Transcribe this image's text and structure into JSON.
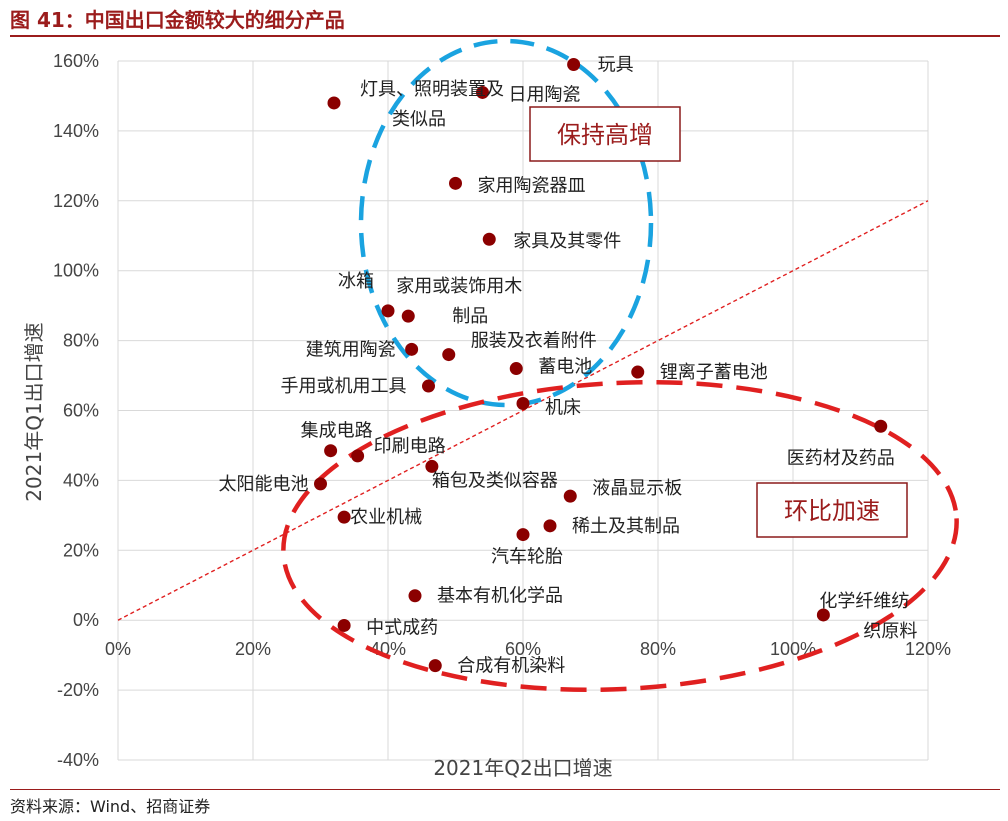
{
  "header": {
    "title": "图 41：中国出口金额较大的细分产品"
  },
  "footer": {
    "source": "资料来源：Wind、招商证券"
  },
  "colors": {
    "title": "#9b1c1c",
    "points": "#8b0000",
    "diagonal": "#e02020",
    "blue_group": "#1aa3e0",
    "red_group": "#e02020",
    "grid": "#d9d9d9"
  },
  "chart_data": {
    "type": "scatter",
    "title": "",
    "xlabel": "2021年Q2出口增速",
    "ylabel": "2021年Q1出口增速",
    "xlim": [
      0,
      120
    ],
    "ylim": [
      -40,
      160
    ],
    "x_ticks": [
      0,
      20,
      40,
      60,
      80,
      100,
      120
    ],
    "y_ticks": [
      -40,
      -20,
      0,
      20,
      40,
      60,
      80,
      100,
      120,
      140,
      160
    ],
    "x_tick_labels": [
      "0%",
      "20%",
      "40%",
      "60%",
      "80%",
      "100%",
      "120%"
    ],
    "y_tick_labels": [
      "-40%",
      "-20%",
      "0%",
      "20%",
      "40%",
      "60%",
      "80%",
      "100%",
      "120%",
      "140%",
      "160%"
    ],
    "grid": "vertical and horizontal",
    "reference_line": "y = x (dashed)",
    "group_labels": [
      "保持高增",
      "环比加速"
    ],
    "points": [
      {
        "label": "玩具",
        "x": 67.5,
        "y": 159
      },
      {
        "label": "灯具、照明装置及类似品",
        "x": 32,
        "y": 148
      },
      {
        "label": "日用陶瓷",
        "x": 54,
        "y": 151
      },
      {
        "label": "家用陶瓷器皿",
        "x": 50,
        "y": 125
      },
      {
        "label": "家具及其零件",
        "x": 55,
        "y": 109
      },
      {
        "label": "冰箱",
        "x": 40,
        "y": 88.5
      },
      {
        "label": "家用或装饰用木制品",
        "x": 43,
        "y": 87
      },
      {
        "label": "建筑用陶瓷",
        "x": 43.5,
        "y": 77.5
      },
      {
        "label": "服装及衣着附件",
        "x": 49,
        "y": 76
      },
      {
        "label": "蓄电池",
        "x": 59,
        "y": 72
      },
      {
        "label": "锂离子蓄电池",
        "x": 77,
        "y": 71
      },
      {
        "label": "手用或机用工具",
        "x": 46,
        "y": 67
      },
      {
        "label": "机床",
        "x": 60,
        "y": 62
      },
      {
        "label": "医药材及药品",
        "x": 113,
        "y": 55.5
      },
      {
        "label": "集成电路",
        "x": 31.5,
        "y": 48.5
      },
      {
        "label": "印刷电路",
        "x": 35.5,
        "y": 47
      },
      {
        "label": "箱包及类似容器",
        "x": 46.5,
        "y": 44
      },
      {
        "label": "太阳能电池",
        "x": 30,
        "y": 39
      },
      {
        "label": "液晶显示板",
        "x": 67,
        "y": 35.5
      },
      {
        "label": "农业机械",
        "x": 33.5,
        "y": 29.5
      },
      {
        "label": "稀土及其制品",
        "x": 64,
        "y": 27
      },
      {
        "label": "汽车轮胎",
        "x": 60,
        "y": 24.5
      },
      {
        "label": "基本有机化学品",
        "x": 44,
        "y": 7
      },
      {
        "label": "化学纤维纺织原料",
        "x": 104.5,
        "y": 1.5
      },
      {
        "label": "中式成药",
        "x": 33.5,
        "y": -1.5
      },
      {
        "label": "合成有机染料",
        "x": 47,
        "y": -13
      }
    ]
  }
}
